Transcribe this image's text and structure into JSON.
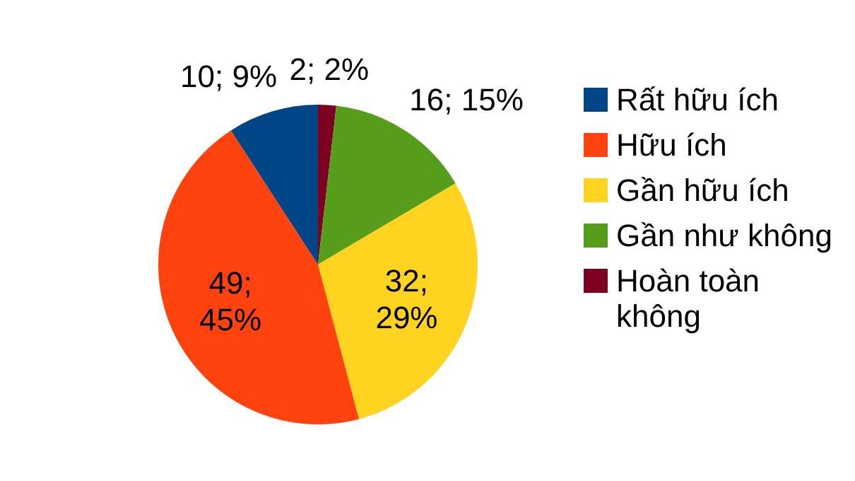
{
  "chart_data": {
    "type": "pie",
    "categories": [
      "Rất hữu ích",
      "Hữu ích",
      "Gần hữu ích",
      "Gần như không",
      "Hoàn toàn không"
    ],
    "values": [
      10,
      49,
      32,
      16,
      2
    ],
    "colors": [
      "#004586",
      "#ff420e",
      "#ffd320",
      "#579d1c",
      "#7e0021"
    ],
    "value_labels": [
      "10; 9%",
      "49; 45%",
      "32; 29%",
      "16; 15%",
      "2; 2%"
    ],
    "legend": "right"
  }
}
